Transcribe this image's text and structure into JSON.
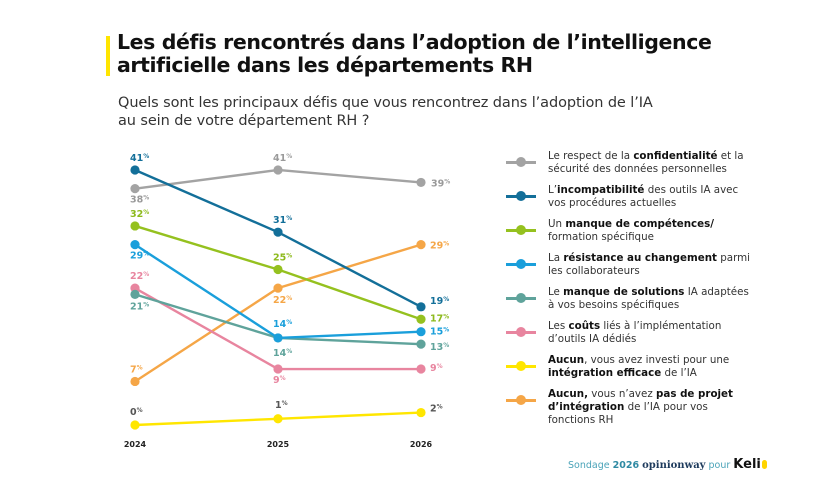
{
  "header": {
    "title_line1": "Les défis rencontrés dans l’adoption de l’intelligence",
    "title_line2": "artificielle dans les départements RH",
    "subtitle_line1": "Quels sont les principaux défis que vous rencontrez dans l’adoption de l’IA",
    "subtitle_line2": "au sein de votre département RH ?",
    "accent_color": "#ffe500"
  },
  "chart_data": {
    "type": "line",
    "title": "Les défis rencontrés dans l’adoption de l’intelligence artificielle dans les départements RH",
    "subtitle": "Quels sont les principaux défis que vous rencontrez dans l’adoption de l’IA au sein de votre département RH ?",
    "xlabel": "",
    "ylabel": "",
    "x": [
      "2024",
      "2025",
      "2026"
    ],
    "ylim": [
      0,
      41
    ],
    "grid": false,
    "value_suffix": "%",
    "legend_position": "right",
    "series": [
      {
        "name": "Le respect de la confidentialité et la sécurité des données personnelles",
        "color": "#a3a3a3",
        "values": [
          38,
          41,
          39
        ]
      },
      {
        "name": "L’incompatibilité des outils IA avec vos procédures actuelles",
        "color": "#136f99",
        "values": [
          41,
          31,
          19
        ]
      },
      {
        "name": "Un manque de compétences/ formation spécifique",
        "color": "#95c11f",
        "values": [
          32,
          25,
          17
        ]
      },
      {
        "name": "La résistance au changement parmi les collaborateurs",
        "color": "#1a9fdb",
        "values": [
          29,
          14,
          15
        ]
      },
      {
        "name": "Le manque de solutions IA adaptées à vos besoins spécifiques",
        "color": "#5fa39b",
        "values": [
          21,
          14,
          13
        ]
      },
      {
        "name": "Les coûts liés à l’implémentation d’outils IA dédiés",
        "color": "#e8859f",
        "values": [
          22,
          9,
          9
        ]
      },
      {
        "name": "Aucun, vous avez investi pour une intégration efficace de l’IA",
        "color": "#ffe600",
        "values": [
          0,
          1,
          2
        ]
      },
      {
        "name": "Aucun, vous n’avez pas de projet d’intégration de l’IA pour vos fonctions RH",
        "color": "#f5a647",
        "values": [
          7,
          22,
          29
        ]
      }
    ]
  },
  "labels": {
    "points": [
      {
        "series": 0,
        "idx": 0,
        "text": "38",
        "suffix": "%",
        "color": "#9a9a9a"
      },
      {
        "series": 0,
        "idx": 1,
        "text": "41",
        "suffix": "%",
        "color": "#9a9a9a"
      },
      {
        "series": 0,
        "idx": 2,
        "text": "39",
        "suffix": "%",
        "color": "#9a9a9a"
      },
      {
        "series": 1,
        "idx": 0,
        "text": "41",
        "suffix": "%",
        "color": "#136f99"
      },
      {
        "series": 1,
        "idx": 1,
        "text": "31",
        "suffix": "%",
        "color": "#136f99"
      },
      {
        "series": 1,
        "idx": 2,
        "text": "19",
        "suffix": "%",
        "color": "#136f99"
      },
      {
        "series": 2,
        "idx": 0,
        "text": "32",
        "suffix": "%",
        "color": "#8dba1c"
      },
      {
        "series": 2,
        "idx": 1,
        "text": "25",
        "suffix": "%",
        "color": "#8dba1c"
      },
      {
        "series": 2,
        "idx": 2,
        "text": "17",
        "suffix": "%",
        "color": "#8dba1c"
      },
      {
        "series": 3,
        "idx": 0,
        "text": "29",
        "suffix": "%",
        "color": "#1a9fdb"
      },
      {
        "series": 3,
        "idx": 1,
        "text": "14",
        "suffix": "%",
        "color": "#1a9fdb"
      },
      {
        "series": 3,
        "idx": 2,
        "text": "15",
        "suffix": "%",
        "color": "#1a9fdb"
      },
      {
        "series": 4,
        "idx": 0,
        "text": "21",
        "suffix": "%",
        "color": "#5fa39b"
      },
      {
        "series": 4,
        "idx": 1,
        "text": "14",
        "suffix": "%",
        "color": "#5fa39b"
      },
      {
        "series": 4,
        "idx": 2,
        "text": "13",
        "suffix": "%",
        "color": "#5fa39b"
      },
      {
        "series": 5,
        "idx": 0,
        "text": "22",
        "suffix": "%",
        "color": "#e8859f"
      },
      {
        "series": 5,
        "idx": 1,
        "text": "9",
        "suffix": "%",
        "color": "#e8859f"
      },
      {
        "series": 5,
        "idx": 2,
        "text": "9",
        "suffix": "%",
        "color": "#e8859f"
      },
      {
        "series": 6,
        "idx": 0,
        "text": "0",
        "suffix": "%",
        "color": "#555555"
      },
      {
        "series": 6,
        "idx": 1,
        "text": "1",
        "suffix": "%",
        "color": "#555555"
      },
      {
        "series": 6,
        "idx": 2,
        "text": "2",
        "suffix": "%",
        "color": "#555555"
      },
      {
        "series": 7,
        "idx": 0,
        "text": "7",
        "suffix": "%",
        "color": "#f5a647"
      },
      {
        "series": 7,
        "idx": 1,
        "text": "22",
        "suffix": "%",
        "color": "#f5a647"
      },
      {
        "series": 7,
        "idx": 2,
        "text": "29",
        "suffix": "%",
        "color": "#f5a647"
      }
    ]
  },
  "legend": {
    "items": [
      {
        "parts": [
          {
            "t": "Le respect de la ",
            "b": false
          },
          {
            "t": "confidentialité",
            "b": true
          },
          {
            "t": " et la sécurité des données personnelles",
            "b": false
          }
        ],
        "color": "#a3a3a3"
      },
      {
        "parts": [
          {
            "t": "L’",
            "b": false
          },
          {
            "t": "incompatibilité",
            "b": true
          },
          {
            "t": " des outils IA avec vos procédures actuelles",
            "b": false
          }
        ],
        "color": "#136f99"
      },
      {
        "parts": [
          {
            "t": "Un ",
            "b": false
          },
          {
            "t": "manque de compétences/",
            "b": true
          },
          {
            "t": " formation spécifique",
            "b": false
          }
        ],
        "color": "#95c11f"
      },
      {
        "parts": [
          {
            "t": "La ",
            "b": false
          },
          {
            "t": "résistance au changement",
            "b": true
          },
          {
            "t": " parmi les collaborateurs",
            "b": false
          }
        ],
        "color": "#1a9fdb"
      },
      {
        "parts": [
          {
            "t": "Le ",
            "b": false
          },
          {
            "t": "manque de solutions",
            "b": true
          },
          {
            "t": " IA adaptées à vos besoins spécifiques",
            "b": false
          }
        ],
        "color": "#5fa39b"
      },
      {
        "parts": [
          {
            "t": "Les ",
            "b": false
          },
          {
            "t": "coûts",
            "b": true
          },
          {
            "t": " liés à l’implémentation d’outils IA dédiés",
            "b": false
          }
        ],
        "color": "#e8859f"
      },
      {
        "parts": [
          {
            "t": "Aucun",
            "b": true
          },
          {
            "t": ", vous avez investi pour une ",
            "b": false
          },
          {
            "t": "intégration efficace",
            "b": true
          },
          {
            "t": " de l’IA",
            "b": false
          }
        ],
        "color": "#ffe600"
      },
      {
        "parts": [
          {
            "t": "Aucun,",
            "b": true
          },
          {
            "t": " vous n’avez ",
            "b": false
          },
          {
            "t": "pas de projet d’intégration",
            "b": true
          },
          {
            "t": " de l’IA pour vos fonctions RH",
            "b": false
          }
        ],
        "color": "#f5a647"
      }
    ]
  },
  "footer": {
    "prefix": "Sondage ",
    "year": "2026",
    "partner": "opinionway",
    "pour": " pour ",
    "brand": "Keli",
    "brand_end": "o"
  }
}
